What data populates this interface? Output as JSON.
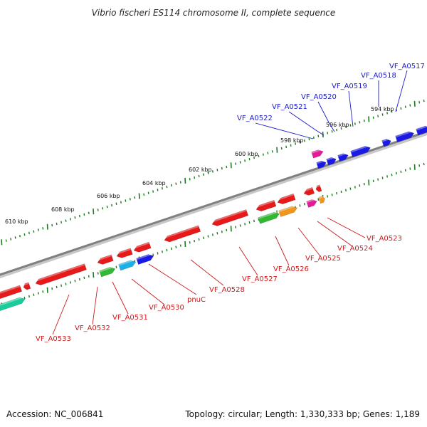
{
  "title": "Vibrio fischeri ES114 chromosome II, complete sequence",
  "footer": {
    "accession": "Accession: NC_006841",
    "summary": "Topology: circular; Length: 1,330,333 bp; Genes: 1,189"
  },
  "scale_labels": [
    "594 kbp",
    "596 kbp",
    "598 kbp",
    "600 kbp",
    "602 kbp",
    "604 kbp",
    "606 kbp",
    "608 kbp",
    "610 kbp"
  ],
  "gene_labels_forward": [
    "VF_A0517",
    "VF_A0518",
    "VF_A0519",
    "VF_A0520",
    "VF_A0521",
    "VF_A0522"
  ],
  "gene_labels_reverse": [
    "VF_A0523",
    "VF_A0524",
    "VF_A0525",
    "VF_A0526",
    "VF_A0527",
    "VF_A0528",
    "pnuC",
    "VF_A0530",
    "VF_A0531",
    "VF_A0532",
    "VF_A0533"
  ],
  "colors": {
    "backbone": "#808080",
    "tick": "#1f7a1f",
    "forward_label": "#1a1acc",
    "reverse_label": "#cc1a1a",
    "gene_red": "#e61a1a",
    "gene_blue": "#1a1ae6",
    "gene_green": "#33b833",
    "gene_cyan": "#1ab2e6",
    "gene_magenta": "#e61a99",
    "gene_orange": "#f0961a",
    "gene_teal": "#1acc99"
  }
}
